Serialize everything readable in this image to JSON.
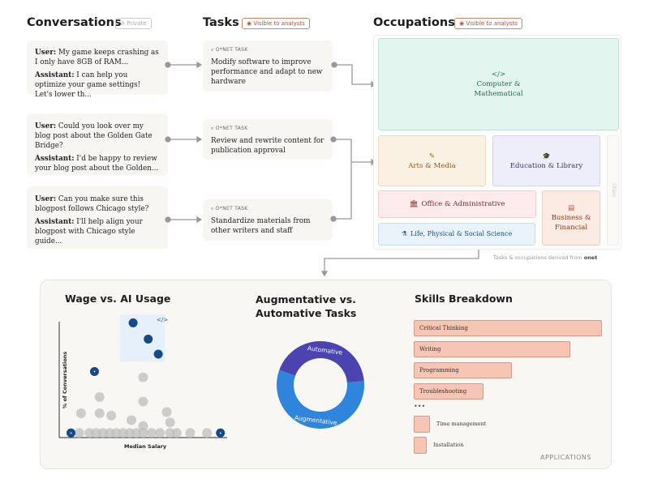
{
  "headers": {
    "conversations": "Conversations",
    "private": "Private",
    "tasks": "Tasks",
    "tasks_badge": "Visible to analysts",
    "occupations": "Occupations",
    "occ_badge": "Visible to analysts"
  },
  "conversations": [
    {
      "user_label": "User:",
      "user": "My game keeps crashing as I only have 8GB of RAM...",
      "assistant_label": "Assistant:",
      "assistant": "I can help you optimize your game settings! Let's lower th..."
    },
    {
      "user_label": "User:",
      "user": " Could you look over my blog post about the Golden Gate Bridge?",
      "assistant_label": "Assistant:",
      "assistant": "I'd be happy to review your blog post about the Golden..."
    },
    {
      "user_label": "User:",
      "user": "Can you make sure this blogpost follows Chicago style?",
      "assistant_label": "Assistant:",
      "assistant": "I'll help align your blogpost with Chicago style guide..."
    }
  ],
  "tasks": [
    {
      "tag": "O*NET TASK",
      "text": "Modify software to improve performance and adapt to new hardware"
    },
    {
      "tag": "O*NET TASK",
      "text": "Review and rewrite content for publication approval"
    },
    {
      "tag": "O*NET TASK",
      "text": "Standardize materials from other writers and staff"
    }
  ],
  "occupations": {
    "computer": {
      "icon": "</>",
      "label": "Computer & Mathematical",
      "color": "#e3f5ef"
    },
    "arts": {
      "icon": "✎",
      "label": "Arts & Media",
      "color": "#fbf1e3"
    },
    "education": {
      "icon": "🎓",
      "label": "Education & Library",
      "color": "#eeeefb"
    },
    "other": {
      "label": "Other"
    },
    "office": {
      "icon": "🏛",
      "label": "Office & Administrative",
      "color": "#fcebea"
    },
    "life": {
      "icon": "⚗",
      "label": "Life, Physical & Social Science",
      "color": "#e8f3fb"
    },
    "business": {
      "icon": "▤",
      "label": "Business & Financial",
      "color": "#fcebe3"
    }
  },
  "footnote": "Tasks & occupations derived from",
  "footnote_brand": "onet",
  "chart_data": [
    {
      "type": "scatter",
      "title": "Wage vs. AI Usage",
      "xlabel": "Median Salary",
      "ylabel": "% of Conversations",
      "xlim": [
        0,
        100
      ],
      "ylim": [
        0,
        100
      ],
      "highlighted": [
        {
          "x": 44,
          "y": 99
        },
        {
          "x": 53,
          "y": 85
        },
        {
          "x": 59,
          "y": 72
        }
      ],
      "icon_points": [
        {
          "x": 21,
          "y": 57,
          "icon": "graduation-cap"
        },
        {
          "x": 7,
          "y": 4,
          "icon": "building"
        },
        {
          "x": 96,
          "y": 4,
          "icon": "flask"
        }
      ],
      "points": [
        {
          "x": 50,
          "y": 52
        },
        {
          "x": 24,
          "y": 35
        },
        {
          "x": 50,
          "y": 31
        },
        {
          "x": 13,
          "y": 21
        },
        {
          "x": 24,
          "y": 21
        },
        {
          "x": 31,
          "y": 19
        },
        {
          "x": 43,
          "y": 15
        },
        {
          "x": 64,
          "y": 22
        },
        {
          "x": 66,
          "y": 13
        },
        {
          "x": 50,
          "y": 10
        },
        {
          "x": 12,
          "y": 4
        },
        {
          "x": 18,
          "y": 4
        },
        {
          "x": 22,
          "y": 4
        },
        {
          "x": 26,
          "y": 4
        },
        {
          "x": 30,
          "y": 4
        },
        {
          "x": 34,
          "y": 4
        },
        {
          "x": 38,
          "y": 4
        },
        {
          "x": 42,
          "y": 4
        },
        {
          "x": 46,
          "y": 4
        },
        {
          "x": 50,
          "y": 4
        },
        {
          "x": 55,
          "y": 4
        },
        {
          "x": 60,
          "y": 4
        },
        {
          "x": 66,
          "y": 4
        },
        {
          "x": 70,
          "y": 4
        },
        {
          "x": 78,
          "y": 4
        },
        {
          "x": 88,
          "y": 4
        }
      ]
    },
    {
      "type": "pie",
      "title": "Augmentative vs. Automative Tasks",
      "slices": [
        {
          "name": "Automative",
          "value": 43,
          "color": "#4b43b0"
        },
        {
          "name": "Augmentative",
          "value": 57,
          "color": "#2f84dc"
        }
      ]
    },
    {
      "type": "bar",
      "title": "Skills Breakdown",
      "categories": [
        "Critical Thinking",
        "Writing",
        "Programming",
        "Troubleshooting",
        "Time management",
        "Installation"
      ],
      "values": [
        100,
        83,
        52,
        37,
        9,
        6
      ],
      "ellipsis": "•••",
      "footer": "APPLICATIONS"
    }
  ]
}
